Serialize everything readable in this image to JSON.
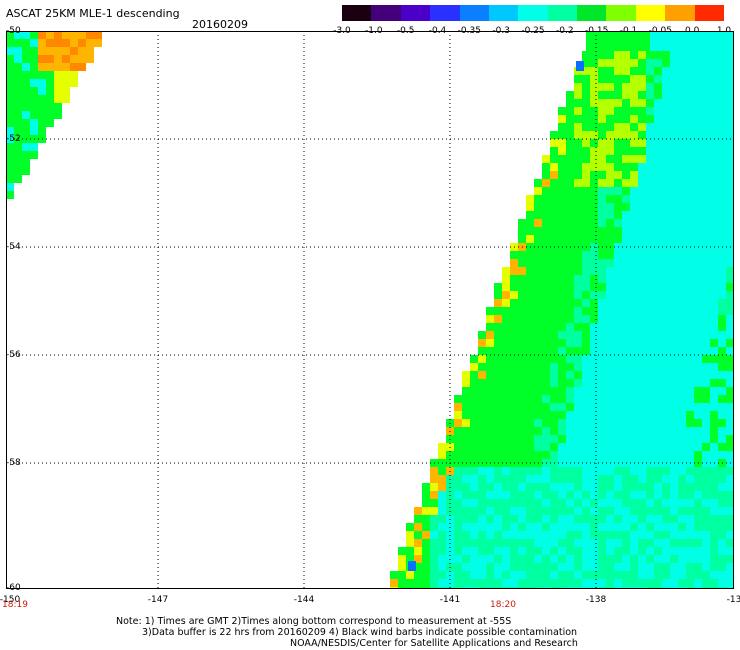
{
  "header": {
    "title": "ASCAT 25KM MLE-1 descending",
    "date": "20160209"
  },
  "colorbar": {
    "ticks": [
      "-3.0",
      "-1.0",
      "-0.5",
      "-0.4",
      "-0.35",
      "-0.3",
      "-0.25",
      "-0.2",
      "-0.15",
      "-0.1",
      "-0.05",
      "0.0",
      "1.0"
    ],
    "colors": [
      "#1a0010",
      "#44007a",
      "#4a00c8",
      "#2a30ff",
      "#0a80ff",
      "#00c8ff",
      "#00ffe6",
      "#00ffa0",
      "#00e628",
      "#80ff00",
      "#ffff00",
      "#ffa000",
      "#ff2a00"
    ]
  },
  "map": {
    "lat_labels": [
      "-50",
      "-52",
      "-54",
      "-56",
      "-58",
      "-60"
    ],
    "lon_labels": [
      "-150",
      "-147",
      "-144",
      "-141",
      "-138",
      "-13"
    ],
    "time_labels": [
      "18:19",
      "18:20"
    ],
    "legend_colors": {
      "green": "#00ff28",
      "cyan": "#00ffe6",
      "yellow": "#e6ff00",
      "orange": "#ffb400",
      "blue": "#0a6eff"
    }
  },
  "notes": {
    "line1": "Note: 1) Times are GMT 2)Times along bottom correspond to measurement at -55S",
    "line2": "3)Data buffer is 22 hrs from 20160209 4) Black wind barbs indicate possible contamination",
    "line3": "NOAA/NESDIS/Center for Satellite Applications and Research"
  }
}
